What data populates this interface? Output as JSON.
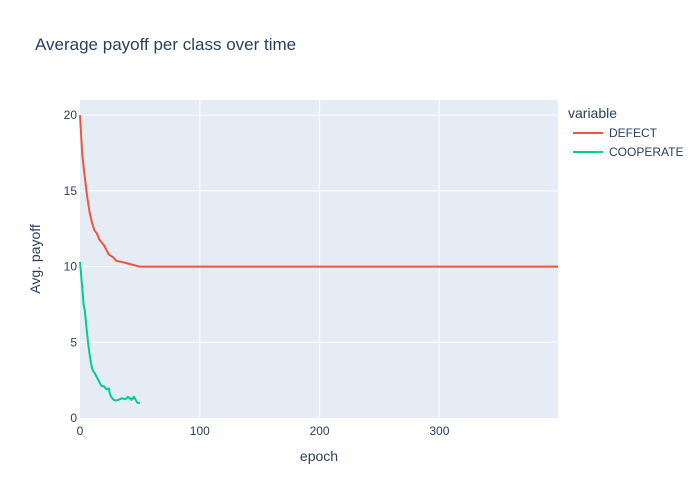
{
  "chart_data": {
    "type": "line",
    "title": "Average payoff per class over time",
    "xlabel": "epoch",
    "ylabel": "Avg. payoff",
    "xlim": [
      0,
      399
    ],
    "ylim": [
      0,
      21
    ],
    "xticks": [
      0,
      100,
      200,
      300
    ],
    "yticks": [
      0,
      5,
      10,
      15,
      20
    ],
    "grid": true,
    "legend": {
      "title": "variable",
      "position": "right"
    },
    "series": [
      {
        "name": "DEFECT",
        "color": "#EF553B",
        "x": [
          0,
          1,
          2,
          4,
          6,
          8,
          10,
          12,
          14,
          16,
          18,
          20,
          22,
          24,
          26,
          28,
          30,
          32,
          35,
          40,
          45,
          50,
          100,
          200,
          300,
          399
        ],
        "y": [
          20.0,
          18.6,
          17.3,
          15.9,
          14.6,
          13.6,
          12.9,
          12.4,
          12.2,
          11.8,
          11.6,
          11.4,
          11.1,
          10.8,
          10.7,
          10.6,
          10.4,
          10.35,
          10.3,
          10.2,
          10.1,
          10.0,
          10.0,
          10.0,
          10.0,
          10.0
        ]
      },
      {
        "name": "COOPERATE",
        "color": "#00CC96",
        "x": [
          0,
          1,
          2,
          3,
          4,
          5,
          6,
          7,
          8,
          9,
          10,
          11,
          12,
          14,
          16,
          18,
          20,
          22,
          24,
          25,
          26,
          28,
          30,
          32,
          35,
          38,
          40,
          43,
          45,
          48,
          50
        ],
        "y": [
          10.3,
          9.4,
          8.5,
          7.5,
          7.1,
          6.3,
          5.5,
          4.8,
          4.2,
          3.7,
          3.3,
          3.1,
          3.0,
          2.7,
          2.4,
          2.1,
          2.1,
          1.9,
          1.95,
          1.6,
          1.4,
          1.2,
          1.15,
          1.2,
          1.3,
          1.25,
          1.4,
          1.2,
          1.4,
          1.0,
          1.0
        ]
      }
    ]
  }
}
